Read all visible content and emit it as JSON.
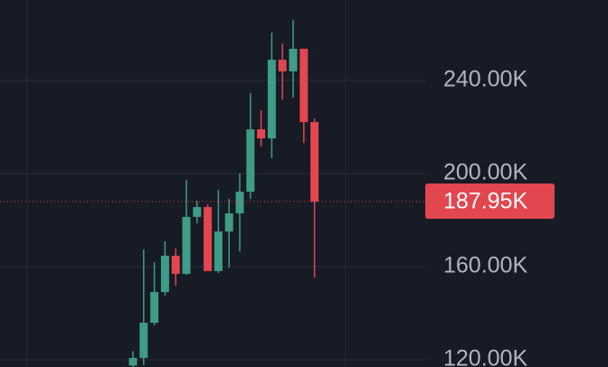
{
  "chart_data": {
    "type": "candlestick",
    "open": [
      117.5,
      120.78,
      135.9,
      149.1,
      164.7,
      156.9,
      181.4,
      185.6,
      158.1,
      175.1,
      182.9,
      192.2,
      219.0,
      215.1,
      248.9,
      243.9,
      253.6,
      222.1
    ],
    "high": [
      123.7,
      167.4,
      161.9,
      170.9,
      167.8,
      197.3,
      188.3,
      186.8,
      193.0,
      189.1,
      200.0,
      234.6,
      227.2,
      260.6,
      255.9,
      266.0,
      253.6,
      223.7
    ],
    "low": [
      117.0,
      117.7,
      134.8,
      147.6,
      151.8,
      156.5,
      178.6,
      158.1,
      157.3,
      159.6,
      166.6,
      189.1,
      211.7,
      206.6,
      231.8,
      232.6,
      213.2,
      155.3
    ],
    "close": [
      120.8,
      135.9,
      149.1,
      164.7,
      156.9,
      181.4,
      185.6,
      158.1,
      175.1,
      182.9,
      192.2,
      219.0,
      215.1,
      248.9,
      243.9,
      253.6,
      222.1,
      187.95
    ],
    "up_color": "#3f9c86",
    "down_color": "#e2464f",
    "ylim": [
      116.89,
      274.56
    ],
    "yticks": [
      {
        "value": 120,
        "label": "120.00K"
      },
      {
        "value": 160,
        "label": "160.00K"
      },
      {
        "value": 200,
        "label": "200.00K"
      },
      {
        "value": 240,
        "label": "240.00K"
      }
    ],
    "grid": true,
    "last_price": {
      "value": 187.95,
      "label": "187.95K"
    }
  }
}
